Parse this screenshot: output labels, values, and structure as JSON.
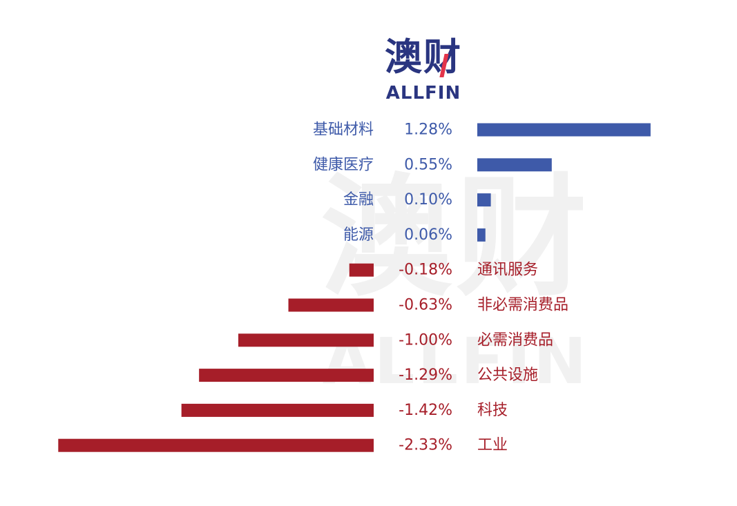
{
  "logo": {
    "cn": "澳财",
    "en": "ALLFIN"
  },
  "watermark": {
    "cn": "澳财",
    "en": "ALLFIN"
  },
  "colors": {
    "positive": "#3e5aa9",
    "negative": "#a61e29",
    "brand": "#2a3580",
    "brand_accent": "#e3344a"
  },
  "chart_data": {
    "type": "bar",
    "orientation": "horizontal",
    "categories": [
      "基础材料",
      "健康医疗",
      "金融",
      "能源",
      "通讯服务",
      "非必需消费品",
      "必需消费品",
      "公共设施",
      "科技",
      "工业"
    ],
    "values": [
      1.28,
      0.55,
      0.1,
      0.06,
      -0.18,
      -0.63,
      -1.0,
      -1.29,
      -1.42,
      -2.33
    ],
    "value_labels": [
      "1.28%",
      "0.55%",
      "0.10%",
      "0.06%",
      "-0.18%",
      "-0.63%",
      "-1.00%",
      "-1.29%",
      "-1.42%",
      "-2.33%"
    ],
    "title": "",
    "xlabel": "",
    "ylabel": "",
    "grid": false,
    "legend": "none"
  }
}
